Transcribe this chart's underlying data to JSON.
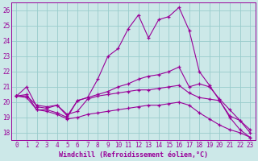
{
  "xlabel": "Windchill (Refroidissement éolien,°C)",
  "bg_color": "#cce8e8",
  "grid_color": "#99cccc",
  "line_color": "#990099",
  "ylim": [
    17.5,
    26.5
  ],
  "xlim": [
    -0.5,
    23.5
  ],
  "yticks": [
    18,
    19,
    20,
    21,
    22,
    23,
    24,
    25,
    26
  ],
  "xticks": [
    0,
    1,
    2,
    3,
    4,
    5,
    6,
    7,
    8,
    9,
    10,
    11,
    12,
    13,
    14,
    15,
    16,
    17,
    18,
    19,
    20,
    21,
    22,
    23
  ],
  "series": [
    [
      20.4,
      21.0,
      19.7,
      19.6,
      19.8,
      19.1,
      20.1,
      20.3,
      21.5,
      23.0,
      23.5,
      24.8,
      25.7,
      24.2,
      25.4,
      25.6,
      26.2,
      24.7,
      22.0,
      21.1,
      20.1,
      19.0,
      18.2,
      17.7
    ],
    [
      20.4,
      20.5,
      19.5,
      19.5,
      19.3,
      19.0,
      20.1,
      20.3,
      20.5,
      20.7,
      21.0,
      21.2,
      21.5,
      21.7,
      21.8,
      22.0,
      22.3,
      21.0,
      21.2,
      21.0,
      20.2,
      19.5,
      18.8,
      18.0
    ],
    [
      20.4,
      20.4,
      19.8,
      19.7,
      19.8,
      19.2,
      19.4,
      20.2,
      20.4,
      20.5,
      20.6,
      20.7,
      20.8,
      20.8,
      20.9,
      21.0,
      21.1,
      20.6,
      20.3,
      20.2,
      20.1,
      19.1,
      18.8,
      18.2
    ],
    [
      20.4,
      20.3,
      19.5,
      19.4,
      19.2,
      18.9,
      19.0,
      19.2,
      19.3,
      19.4,
      19.5,
      19.6,
      19.7,
      19.8,
      19.8,
      19.9,
      20.0,
      19.8,
      19.3,
      18.9,
      18.5,
      18.2,
      18.0,
      17.7
    ]
  ]
}
